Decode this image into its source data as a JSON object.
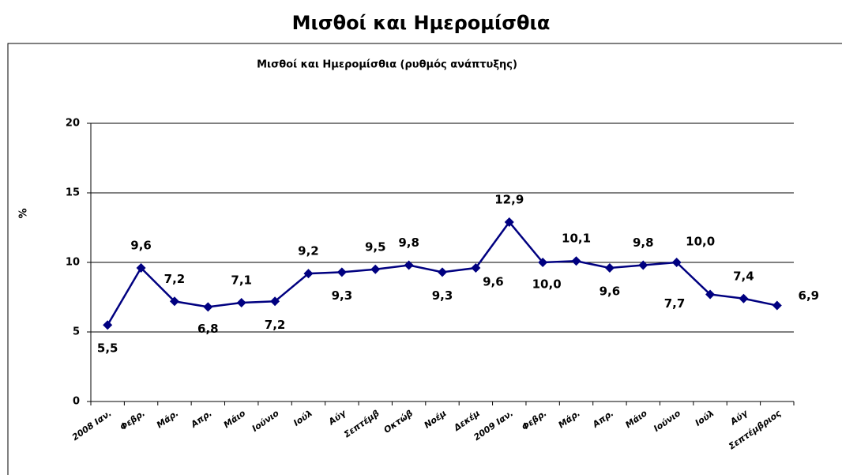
{
  "page_title": "Μισθοί και Ημερομίσθια",
  "chart_data": {
    "type": "line",
    "title": "Μισθοί και Ημερομίσθια (ρυθμός ανάπτυξης)",
    "y_label": "%",
    "categories": [
      "2008 Ιαν.",
      "Φεβρ.",
      "Μάρ.",
      "Απρ.",
      "Μάιο",
      "Ιούνιο",
      "Ιούλ",
      "Αύγ",
      "Σεπτέμβ",
      "Οκτώβ",
      "Νοέμ",
      "Δεκέμ",
      "2009 Ιαν.",
      "Φεβρ.",
      "Μάρ.",
      "Απρ.",
      "Μάιο",
      "Ιούνιο",
      "Ιούλ",
      "Αύγ",
      "Σεπτέμβριος"
    ],
    "values": [
      5.5,
      9.6,
      7.2,
      6.8,
      7.1,
      7.2,
      9.2,
      9.3,
      9.5,
      9.8,
      9.3,
      9.6,
      12.9,
      10.0,
      10.1,
      9.6,
      9.8,
      10.0,
      7.7,
      7.4,
      6.9
    ],
    "value_labels": [
      "5,5",
      "9,6",
      "7,2",
      "6,8",
      "7,1",
      "7,2",
      "9,2",
      "9,3",
      "9,5",
      "9,8",
      "9,3",
      "9,6",
      "12,9",
      "10,0",
      "10,1",
      "9,6",
      "9,8",
      "10,0",
      "7,7",
      "7,4",
      "6,9"
    ],
    "color": "#000080",
    "ylim": [
      0,
      20
    ],
    "yticks": [
      0,
      5,
      10,
      15,
      20
    ],
    "grid": true
  }
}
